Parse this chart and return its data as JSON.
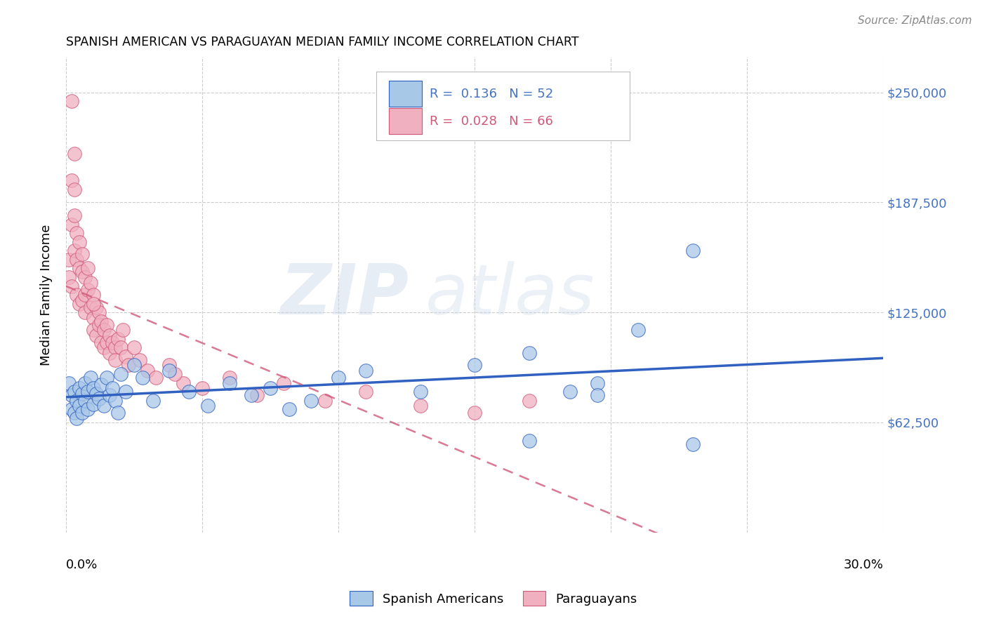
{
  "title": "SPANISH AMERICAN VS PARAGUAYAN MEDIAN FAMILY INCOME CORRELATION CHART",
  "source": "Source: ZipAtlas.com",
  "ylabel": "Median Family Income",
  "ymin": 0,
  "ymax": 270000,
  "xmin": 0.0,
  "xmax": 0.3,
  "watermark_text": "ZIP",
  "watermark_text2": "atlas",
  "color_blue": "#a8c8e8",
  "color_pink": "#f0b0c0",
  "color_blue_line": "#3060c0",
  "color_pink_line": "#d05878",
  "color_blue_text": "#4472c4",
  "color_axis_text": "#4472c4",
  "legend_label1": "Spanish Americans",
  "legend_label2": "Paraguayans",
  "ytick_vals": [
    62500,
    125000,
    187500,
    250000
  ],
  "ytick_labels": [
    "$62,500",
    "$125,000",
    "$187,500",
    "$250,000"
  ],
  "blue_x": [
    0.001,
    0.002,
    0.002,
    0.003,
    0.003,
    0.004,
    0.004,
    0.005,
    0.005,
    0.006,
    0.006,
    0.007,
    0.007,
    0.008,
    0.008,
    0.009,
    0.01,
    0.01,
    0.011,
    0.012,
    0.013,
    0.014,
    0.015,
    0.016,
    0.017,
    0.018,
    0.019,
    0.02,
    0.022,
    0.025,
    0.028,
    0.032,
    0.038,
    0.045,
    0.052,
    0.06,
    0.068,
    0.075,
    0.082,
    0.09,
    0.1,
    0.11,
    0.13,
    0.15,
    0.17,
    0.185,
    0.195,
    0.21,
    0.23,
    0.17,
    0.23,
    0.195
  ],
  "blue_y": [
    85000,
    78000,
    70000,
    80000,
    68000,
    75000,
    65000,
    82000,
    72000,
    79000,
    68000,
    85000,
    75000,
    80000,
    70000,
    88000,
    82000,
    73000,
    79000,
    76000,
    84000,
    72000,
    88000,
    78000,
    82000,
    75000,
    68000,
    90000,
    80000,
    95000,
    88000,
    75000,
    92000,
    80000,
    72000,
    85000,
    78000,
    82000,
    70000,
    75000,
    88000,
    92000,
    80000,
    95000,
    102000,
    80000,
    85000,
    115000,
    50000,
    52000,
    160000,
    78000
  ],
  "pink_x": [
    0.001,
    0.001,
    0.002,
    0.002,
    0.002,
    0.003,
    0.003,
    0.003,
    0.004,
    0.004,
    0.004,
    0.005,
    0.005,
    0.005,
    0.006,
    0.006,
    0.006,
    0.007,
    0.007,
    0.007,
    0.008,
    0.008,
    0.009,
    0.009,
    0.01,
    0.01,
    0.01,
    0.011,
    0.011,
    0.012,
    0.012,
    0.013,
    0.013,
    0.014,
    0.014,
    0.015,
    0.015,
    0.016,
    0.016,
    0.017,
    0.018,
    0.018,
    0.019,
    0.02,
    0.021,
    0.022,
    0.023,
    0.025,
    0.027,
    0.03,
    0.033,
    0.038,
    0.043,
    0.05,
    0.06,
    0.07,
    0.08,
    0.095,
    0.11,
    0.13,
    0.15,
    0.17,
    0.04,
    0.01,
    0.002,
    0.003
  ],
  "pink_y": [
    155000,
    145000,
    200000,
    175000,
    140000,
    215000,
    180000,
    160000,
    170000,
    155000,
    135000,
    165000,
    150000,
    130000,
    158000,
    148000,
    132000,
    145000,
    135000,
    125000,
    150000,
    138000,
    142000,
    128000,
    135000,
    122000,
    115000,
    128000,
    112000,
    125000,
    118000,
    120000,
    108000,
    115000,
    105000,
    118000,
    108000,
    112000,
    102000,
    108000,
    105000,
    98000,
    110000,
    105000,
    115000,
    100000,
    95000,
    105000,
    98000,
    92000,
    88000,
    95000,
    85000,
    82000,
    88000,
    78000,
    85000,
    75000,
    80000,
    72000,
    68000,
    75000,
    90000,
    130000,
    245000,
    195000
  ]
}
